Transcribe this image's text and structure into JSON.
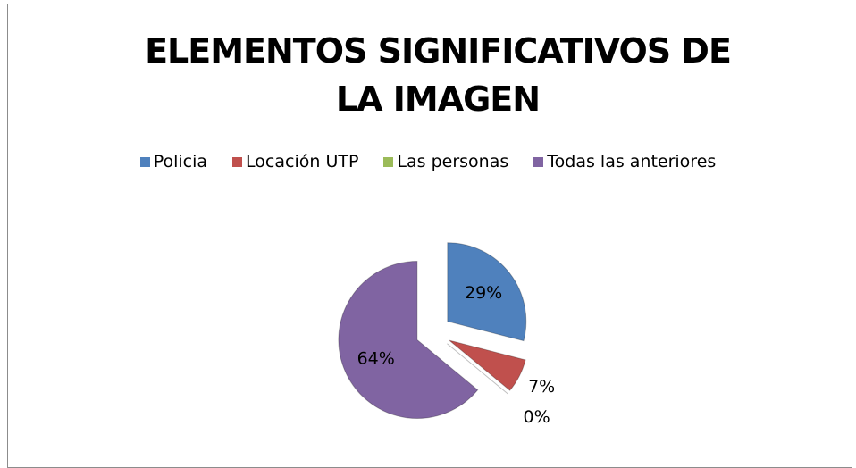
{
  "chart_data": {
    "type": "pie",
    "title": "ELEMENTOS SIGNIFICATIVOS DE LA IMAGEN",
    "categories": [
      "Policia",
      "Locación UTP",
      "Las personas",
      "Todas las anteriores"
    ],
    "values": [
      29,
      7,
      0,
      64
    ],
    "value_labels": [
      "29%",
      "7%",
      "0%",
      "64%"
    ],
    "colors": [
      "#4f81bd",
      "#c0504d",
      "#9bbb59",
      "#8064a2"
    ],
    "legend": "top"
  }
}
